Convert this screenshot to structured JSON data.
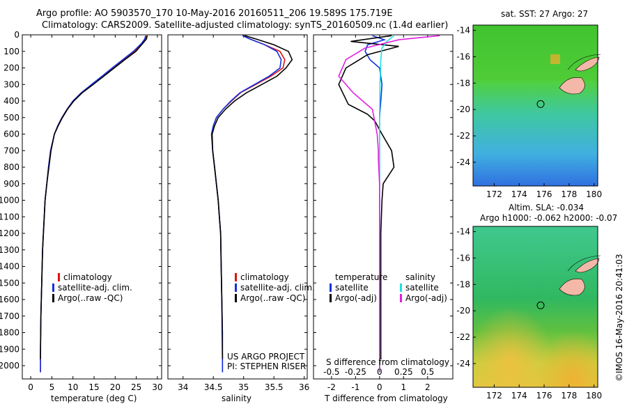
{
  "header": {
    "line1": "Argo profile: AO 5903570_170 10-May-2016 20160511_206 19.589S 175.719E",
    "line2": "Climatology: CARS2009. Satellite-adjusted climatology: synTS_20160509.nc (1.4d earlier)"
  },
  "credit": {
    "line1": "US ARGO PROJECT",
    "line2": "PI: STEPHEN RISER",
    "imos": "©IMOS 16-May-2016 20:41:03"
  },
  "colors": {
    "red": "#e01010",
    "blue": "#1030e0",
    "black": "#000000",
    "cyan": "#20e0e0",
    "magenta": "#e020e0"
  },
  "chart_data": [
    {
      "id": "temperature",
      "type": "line",
      "xlabel": "temperature (deg C)",
      "ylabel": "",
      "xlim": [
        -2,
        31
      ],
      "ylim": [
        2080,
        0
      ],
      "xticks": [
        0,
        5,
        10,
        15,
        20,
        25,
        30
      ],
      "yticks": [
        0,
        100,
        200,
        300,
        400,
        500,
        600,
        700,
        800,
        900,
        1000,
        1100,
        1200,
        1300,
        1400,
        1500,
        1600,
        1700,
        1800,
        1900,
        2000
      ],
      "legend": [
        "climatology",
        "satellite-adj. clim.",
        "Argo(..raw -QC)"
      ],
      "series": [
        {
          "name": "climatology",
          "color": "red",
          "x": [
            27.5,
            27.2,
            26.5,
            24.6,
            22,
            19.5,
            17,
            14.5,
            12,
            10,
            8.6,
            7.4,
            6.4,
            5.6,
            4.7,
            4.2,
            3.8,
            3.4,
            3.2,
            3.0,
            2.8,
            2.7,
            2.6,
            2.5,
            2.4,
            2.35,
            2.3,
            2.3
          ],
          "y": [
            5,
            25,
            50,
            100,
            150,
            200,
            250,
            300,
            350,
            400,
            450,
            500,
            550,
            600,
            700,
            800,
            900,
            1000,
            1100,
            1200,
            1300,
            1400,
            1500,
            1600,
            1700,
            1800,
            1900,
            2040
          ]
        },
        {
          "name": "satellite-adj. clim.",
          "color": "blue",
          "x": [
            27.2,
            27.0,
            26.3,
            24.3,
            21.8,
            19.3,
            16.9,
            14.4,
            12,
            10,
            8.6,
            7.4,
            6.4,
            5.6,
            4.7,
            4.2,
            3.8,
            3.4,
            3.2,
            3.0,
            2.8,
            2.7,
            2.6,
            2.5,
            2.4,
            2.35,
            2.3,
            2.3
          ],
          "y": [
            5,
            25,
            50,
            100,
            150,
            200,
            250,
            300,
            350,
            400,
            450,
            500,
            550,
            600,
            700,
            800,
            900,
            1000,
            1100,
            1200,
            1300,
            1400,
            1500,
            1600,
            1700,
            1800,
            1900,
            2040
          ]
        },
        {
          "name": "Argo(..raw -QC)",
          "color": "black",
          "x": [
            27.6,
            27.4,
            26.6,
            24.9,
            22.3,
            19.8,
            17.3,
            14.8,
            12.2,
            10.2,
            8.7,
            7.5,
            6.5,
            5.6,
            4.8,
            4.3,
            3.8,
            3.4,
            3.2,
            3.0,
            2.8,
            2.7,
            2.6,
            2.5,
            2.4,
            2.35,
            2.3
          ],
          "y": [
            5,
            25,
            50,
            100,
            150,
            200,
            250,
            300,
            350,
            400,
            450,
            500,
            550,
            600,
            700,
            800,
            900,
            1000,
            1100,
            1200,
            1300,
            1400,
            1500,
            1600,
            1700,
            1800,
            1960
          ]
        }
      ]
    },
    {
      "id": "salinity",
      "type": "line",
      "xlabel": "salinity",
      "xlim": [
        33.75,
        36.05
      ],
      "ylim": [
        2080,
        0
      ],
      "xticks": [
        34,
        34.5,
        35,
        35.5,
        36
      ],
      "yticks": [
        0,
        100,
        200,
        300,
        400,
        500,
        600,
        700,
        800,
        900,
        1000,
        1100,
        1200,
        1300,
        1400,
        1500,
        1600,
        1700,
        1800,
        1900,
        2000
      ],
      "legend": [
        "climatology",
        "satellite-adj. clim.",
        "Argo(..raw -QC)"
      ],
      "series": [
        {
          "name": "climatology",
          "color": "red",
          "x": [
            35.0,
            35.1,
            35.35,
            35.6,
            35.68,
            35.65,
            35.45,
            35.2,
            34.95,
            34.8,
            34.66,
            34.55,
            34.5,
            34.47,
            34.49,
            34.52,
            34.55,
            34.58,
            34.6,
            34.62,
            34.63,
            34.64,
            34.65,
            34.65
          ],
          "y": [
            5,
            25,
            60,
            100,
            150,
            200,
            250,
            300,
            350,
            400,
            450,
            500,
            550,
            600,
            700,
            800,
            900,
            1000,
            1100,
            1200,
            1400,
            1600,
            1800,
            2040
          ]
        },
        {
          "name": "satellite-adj. clim.",
          "color": "blue",
          "x": [
            34.98,
            35.1,
            35.35,
            35.55,
            35.62,
            35.6,
            35.42,
            35.18,
            34.94,
            34.79,
            34.66,
            34.55,
            34.5,
            34.47,
            34.49,
            34.52,
            34.55,
            34.58,
            34.6,
            34.62,
            34.63,
            34.64,
            34.65,
            34.65
          ],
          "y": [
            5,
            25,
            60,
            100,
            150,
            200,
            250,
            300,
            350,
            400,
            450,
            500,
            550,
            600,
            700,
            800,
            900,
            1000,
            1100,
            1200,
            1400,
            1600,
            1800,
            2040
          ]
        },
        {
          "name": "Argo(..raw -QC)",
          "color": "black",
          "x": [
            35.02,
            35.2,
            35.5,
            35.74,
            35.8,
            35.7,
            35.55,
            35.3,
            35.05,
            34.85,
            34.7,
            34.58,
            34.52,
            34.48,
            34.49,
            34.52,
            34.55,
            34.58,
            34.6,
            34.62,
            34.63,
            34.64,
            34.65
          ],
          "y": [
            5,
            25,
            60,
            100,
            150,
            200,
            250,
            300,
            350,
            400,
            450,
            500,
            550,
            600,
            700,
            800,
            900,
            1000,
            1100,
            1200,
            1400,
            1600,
            1960
          ]
        }
      ]
    },
    {
      "id": "difference",
      "type": "line",
      "xlabel": "T difference from climatology",
      "xlabel2": "S difference from climatology",
      "xlim": [
        -2.75,
        3.05
      ],
      "ylim": [
        2080,
        0
      ],
      "xticks": [
        -2,
        -1,
        0,
        1,
        2
      ],
      "xticks2": [
        -0.5,
        -0.25,
        0,
        0.25,
        0.5
      ],
      "yticks": [
        0,
        100,
        200,
        300,
        400,
        500,
        600,
        700,
        800,
        900,
        1000,
        1100,
        1200,
        1300,
        1400,
        1500,
        1600,
        1700,
        1800,
        1900,
        2000
      ],
      "legend_temperature": {
        "title": "temperature",
        "items": [
          "satellite",
          "Argo(-adj)"
        ]
      },
      "legend_salinity": {
        "title": "salinity",
        "items": [
          "satellite",
          "Argo(-adj)"
        ]
      },
      "series": [
        {
          "name": "T satellite",
          "color": "blue",
          "x": [
            -0.3,
            0.2,
            -0.5,
            -0.6,
            -0.4,
            0,
            0.1,
            0.05,
            0,
            0,
            0,
            0,
            0,
            0
          ],
          "y": [
            5,
            30,
            60,
            100,
            150,
            200,
            300,
            400,
            500,
            700,
            1000,
            1400,
            1800,
            2040
          ]
        },
        {
          "name": "T Argo(-adj)",
          "color": "black",
          "x": [
            0.5,
            -1.2,
            0.8,
            -0.5,
            -1.4,
            -1.7,
            -1.3,
            -0.5,
            -0.2,
            0.1,
            0.5,
            0.6,
            0.15,
            0.1,
            0.05,
            0.05,
            0.05
          ],
          "y": [
            5,
            40,
            70,
            120,
            200,
            300,
            420,
            480,
            520,
            600,
            700,
            800,
            900,
            1000,
            1200,
            1600,
            1960
          ]
        },
        {
          "name": "S satellite",
          "color": "cyan",
          "x": [
            0.6,
            0.3,
            0.1,
            0.05,
            0.02,
            0,
            0,
            0,
            0
          ],
          "y": [
            5,
            40,
            80,
            150,
            300,
            500,
            800,
            1400,
            2040
          ]
        },
        {
          "name": "S Argo(-adj)",
          "color": "magenta",
          "x": [
            2.5,
            0.8,
            -0.6,
            -1.4,
            -1.7,
            -1.1,
            -0.3,
            -0.1,
            -0.05,
            -0.05,
            0,
            0,
            0
          ],
          "y": [
            5,
            30,
            80,
            150,
            250,
            350,
            450,
            600,
            700,
            750,
            900,
            1400,
            2040
          ]
        }
      ]
    },
    {
      "id": "sst-map",
      "type": "heatmap",
      "title": "sat. SST: 27 Argo: 27",
      "xlim": [
        170.3,
        180.3
      ],
      "ylim": [
        -25.8,
        -13.6
      ],
      "xticks": [
        172,
        174,
        176,
        178,
        180
      ],
      "yticks": [
        -14,
        -16,
        -18,
        -20,
        -22,
        -24
      ],
      "marker": {
        "lon": 175.72,
        "lat": -19.59
      }
    },
    {
      "id": "sla-map",
      "type": "heatmap",
      "title": "Altim. SLA: -0.034",
      "subtitle": "Argo h1000: -0.062 h2000: -0.07",
      "xlim": [
        170.3,
        180.3
      ],
      "ylim": [
        -25.8,
        -13.6
      ],
      "xticks": [
        172,
        174,
        176,
        178,
        180
      ],
      "yticks": [
        -14,
        -16,
        -18,
        -20,
        -22,
        -24
      ],
      "marker": {
        "lon": 175.72,
        "lat": -19.59
      }
    }
  ]
}
